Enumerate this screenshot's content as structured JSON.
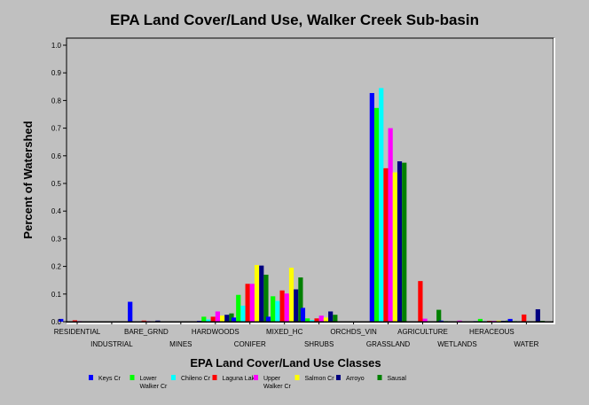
{
  "chart_data": {
    "type": "bar",
    "title": "EPA Land Cover/Land Use, Walker Creek Sub-basin",
    "xlabel": "EPA Land Cover/Land Use Classes",
    "ylabel": "Percent of Watershed",
    "ylim": [
      0,
      1.0
    ],
    "yticks": [
      "0.0",
      "0.1",
      "0.2",
      "0.3",
      "0.4",
      "0.5",
      "0.6",
      "0.7",
      "0.8",
      "0.9",
      "1.0"
    ],
    "grid": false,
    "legend_position": "bottom",
    "categories": [
      "RESIDENTIAL",
      "INDUSTRIAL",
      "BARE_GRND",
      "MINES",
      "HARDWOODS",
      "CONIFER",
      "MIXED_HC",
      "SHRUBS",
      "ORCHDS_VIN",
      "GRASSLAND",
      "AGRICULTURE",
      "WETLANDS",
      "HERACEOUS",
      "WATER"
    ],
    "series": [
      {
        "name": "Keys Cr",
        "legend_lines": [
          "Keys Cr"
        ],
        "color": "#0000ff",
        "values": [
          0.01,
          0.0,
          0.072,
          0.0,
          0.003,
          0.015,
          0.018,
          0.05,
          0.0,
          0.827,
          0.001,
          0.004,
          0.002,
          0.01
        ]
      },
      {
        "name": "Lower Walker Cr",
        "legend_lines": [
          "Lower",
          "Walker Cr"
        ],
        "color": "#00ff00",
        "values": [
          0.0,
          0.0,
          0.0,
          0.0,
          0.018,
          0.097,
          0.092,
          0.012,
          0.0,
          0.773,
          0.0,
          0.002,
          0.01,
          0.002
        ]
      },
      {
        "name": "Chileno Cr",
        "legend_lines": [
          "Chileno Cr"
        ],
        "color": "#00ffff",
        "values": [
          0.0,
          0.0,
          0.0,
          0.0,
          0.008,
          0.058,
          0.075,
          0.006,
          0.0,
          0.845,
          0.0,
          0.0,
          0.002,
          0.0
        ]
      },
      {
        "name": "Laguna Lake",
        "legend_lines": [
          "Laguna Lake"
        ],
        "color": "#ff0000",
        "values": [
          0.005,
          0.0,
          0.004,
          0.0,
          0.018,
          0.137,
          0.113,
          0.012,
          0.0,
          0.555,
          0.147,
          0.0,
          0.003,
          0.026
        ]
      },
      {
        "name": "Upper Walker Cr",
        "legend_lines": [
          "Upper",
          "Walker Cr"
        ],
        "color": "#ff00ff",
        "values": [
          0.002,
          0.0,
          0.002,
          0.0,
          0.037,
          0.137,
          0.102,
          0.022,
          0.0,
          0.7,
          0.011,
          0.004,
          0.003,
          0.0
        ]
      },
      {
        "name": "Salmon Cr",
        "legend_lines": [
          "Salmon Cr"
        ],
        "color": "#ffff00",
        "values": [
          0.0,
          0.0,
          0.0,
          0.0,
          0.022,
          0.205,
          0.195,
          0.015,
          0.0,
          0.54,
          0.0,
          0.0,
          0.004,
          0.0
        ]
      },
      {
        "name": "Arroyo",
        "legend_lines": [
          "Arroyo"
        ],
        "color": "#000080",
        "values": [
          0.0,
          0.0,
          0.004,
          0.0,
          0.025,
          0.203,
          0.117,
          0.037,
          0.0,
          0.58,
          0.0,
          0.0,
          0.003,
          0.045
        ]
      },
      {
        "name": "Sausal",
        "legend_lines": [
          "Sausal"
        ],
        "color": "#008000",
        "values": [
          0.0,
          0.0,
          0.0,
          0.0,
          0.03,
          0.17,
          0.16,
          0.025,
          0.0,
          0.575,
          0.043,
          0.0,
          0.004,
          0.003
        ]
      }
    ]
  }
}
